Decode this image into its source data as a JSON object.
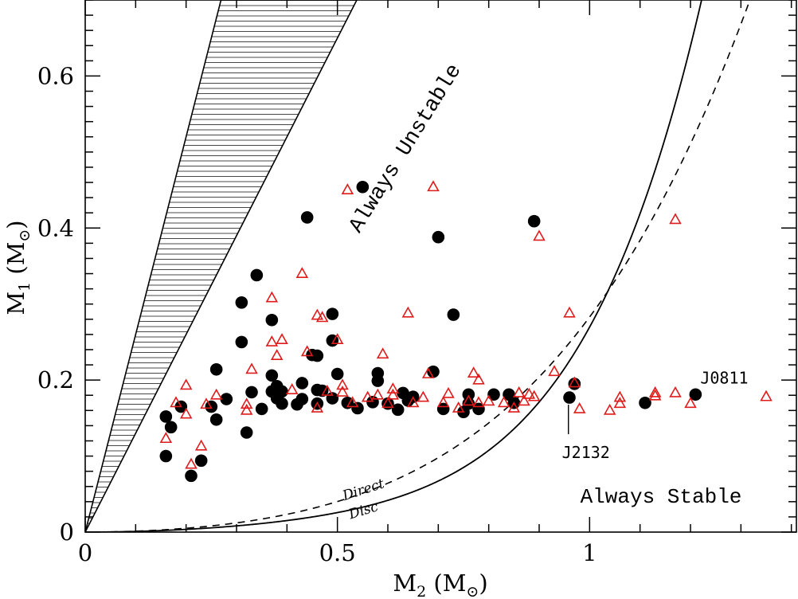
{
  "chart_data": {
    "type": "scatter",
    "xlabel": {
      "main": "M",
      "sub": "2",
      "unit": "(M",
      "sun": "⊙",
      "close": ")"
    },
    "ylabel": {
      "main": "M",
      "sub": "1",
      "unit": "(M",
      "sun": "⊙",
      "close": ")"
    },
    "xlim": [
      0,
      1.41
    ],
    "ylim": [
      0,
      0.7
    ],
    "x_ticks": [
      {
        "v": 0,
        "label": "0"
      },
      {
        "v": 0.5,
        "label": "0.5"
      },
      {
        "v": 1,
        "label": "1"
      }
    ],
    "y_ticks": [
      {
        "v": 0,
        "label": "0"
      },
      {
        "v": 0.2,
        "label": "0.2"
      },
      {
        "v": 0.4,
        "label": "0.4"
      },
      {
        "v": 0.6,
        "label": "0.6"
      }
    ],
    "region_labels": {
      "unstable": "Always Unstable",
      "stable": "Always Stable"
    },
    "curve_labels": {
      "direct": "Direct",
      "disc": "Disc"
    },
    "annotations": [
      {
        "text": "J0811",
        "x": 1.21,
        "y": 0.181
      },
      {
        "text": "J2132",
        "x": 0.958,
        "y": 0.177
      }
    ],
    "unstable_band": {
      "lower_slope": 1.3,
      "upper_slope": 2.6
    },
    "series": [
      {
        "name": "filled circles",
        "marker": "circle",
        "color": "#000000",
        "points": [
          [
            0.16,
            0.152
          ],
          [
            0.17,
            0.138
          ],
          [
            0.16,
            0.1
          ],
          [
            0.19,
            0.165
          ],
          [
            0.21,
            0.074
          ],
          [
            0.23,
            0.094
          ],
          [
            0.25,
            0.165
          ],
          [
            0.26,
            0.148
          ],
          [
            0.26,
            0.214
          ],
          [
            0.28,
            0.175
          ],
          [
            0.31,
            0.302
          ],
          [
            0.31,
            0.25
          ],
          [
            0.32,
            0.131
          ],
          [
            0.33,
            0.184
          ],
          [
            0.34,
            0.338
          ],
          [
            0.35,
            0.162
          ],
          [
            0.37,
            0.279
          ],
          [
            0.37,
            0.206
          ],
          [
            0.37,
            0.185
          ],
          [
            0.38,
            0.192
          ],
          [
            0.38,
            0.176
          ],
          [
            0.39,
            0.185
          ],
          [
            0.39,
            0.169
          ],
          [
            0.42,
            0.168
          ],
          [
            0.43,
            0.175
          ],
          [
            0.43,
            0.196
          ],
          [
            0.44,
            0.414
          ],
          [
            0.45,
            0.233
          ],
          [
            0.46,
            0.232
          ],
          [
            0.46,
            0.187
          ],
          [
            0.46,
            0.169
          ],
          [
            0.47,
            0.186
          ],
          [
            0.49,
            0.287
          ],
          [
            0.49,
            0.252
          ],
          [
            0.49,
            0.176
          ],
          [
            0.5,
            0.208
          ],
          [
            0.52,
            0.17
          ],
          [
            0.54,
            0.163
          ],
          [
            0.55,
            0.454
          ],
          [
            0.57,
            0.171
          ],
          [
            0.58,
            0.209
          ],
          [
            0.58,
            0.199
          ],
          [
            0.6,
            0.169
          ],
          [
            0.62,
            0.161
          ],
          [
            0.63,
            0.183
          ],
          [
            0.64,
            0.173
          ],
          [
            0.65,
            0.178
          ],
          [
            0.69,
            0.211
          ],
          [
            0.7,
            0.388
          ],
          [
            0.71,
            0.162
          ],
          [
            0.73,
            0.286
          ],
          [
            0.75,
            0.158
          ],
          [
            0.76,
            0.181
          ],
          [
            0.76,
            0.169
          ],
          [
            0.78,
            0.162
          ],
          [
            0.81,
            0.181
          ],
          [
            0.84,
            0.181
          ],
          [
            0.85,
            0.17
          ],
          [
            0.89,
            0.409
          ],
          [
            0.96,
            0.177
          ],
          [
            0.97,
            0.195
          ],
          [
            1.11,
            0.17
          ],
          [
            1.21,
            0.181
          ]
        ]
      },
      {
        "name": "open triangles",
        "marker": "triangle",
        "color": "#e01b1b",
        "points": [
          [
            0.16,
            0.123
          ],
          [
            0.18,
            0.17
          ],
          [
            0.2,
            0.193
          ],
          [
            0.2,
            0.155
          ],
          [
            0.21,
            0.089
          ],
          [
            0.23,
            0.113
          ],
          [
            0.24,
            0.168
          ],
          [
            0.26,
            0.18
          ],
          [
            0.32,
            0.16
          ],
          [
            0.32,
            0.168
          ],
          [
            0.33,
            0.214
          ],
          [
            0.37,
            0.308
          ],
          [
            0.37,
            0.25
          ],
          [
            0.38,
            0.232
          ],
          [
            0.39,
            0.253
          ],
          [
            0.41,
            0.187
          ],
          [
            0.43,
            0.34
          ],
          [
            0.44,
            0.237
          ],
          [
            0.46,
            0.285
          ],
          [
            0.46,
            0.163
          ],
          [
            0.47,
            0.282
          ],
          [
            0.48,
            0.185
          ],
          [
            0.5,
            0.253
          ],
          [
            0.51,
            0.193
          ],
          [
            0.51,
            0.184
          ],
          [
            0.52,
            0.45
          ],
          [
            0.53,
            0.17
          ],
          [
            0.56,
            0.177
          ],
          [
            0.58,
            0.18
          ],
          [
            0.59,
            0.234
          ],
          [
            0.6,
            0.169
          ],
          [
            0.61,
            0.18
          ],
          [
            0.61,
            0.188
          ],
          [
            0.64,
            0.288
          ],
          [
            0.65,
            0.17
          ],
          [
            0.67,
            0.177
          ],
          [
            0.68,
            0.208
          ],
          [
            0.69,
            0.454
          ],
          [
            0.71,
            0.17
          ],
          [
            0.72,
            0.182
          ],
          [
            0.74,
            0.163
          ],
          [
            0.76,
            0.172
          ],
          [
            0.77,
            0.209
          ],
          [
            0.78,
            0.2
          ],
          [
            0.78,
            0.17
          ],
          [
            0.8,
            0.172
          ],
          [
            0.83,
            0.17
          ],
          [
            0.85,
            0.163
          ],
          [
            0.86,
            0.183
          ],
          [
            0.87,
            0.172
          ],
          [
            0.88,
            0.181
          ],
          [
            0.89,
            0.178
          ],
          [
            0.9,
            0.389
          ],
          [
            0.93,
            0.211
          ],
          [
            0.96,
            0.288
          ],
          [
            0.97,
            0.196
          ],
          [
            0.98,
            0.162
          ],
          [
            1.04,
            0.16
          ],
          [
            1.06,
            0.169
          ],
          [
            1.06,
            0.177
          ],
          [
            1.13,
            0.179
          ],
          [
            1.13,
            0.183
          ],
          [
            1.17,
            0.183
          ],
          [
            1.17,
            0.411
          ],
          [
            1.2,
            0.169
          ],
          [
            1.35,
            0.178
          ]
        ]
      }
    ]
  }
}
